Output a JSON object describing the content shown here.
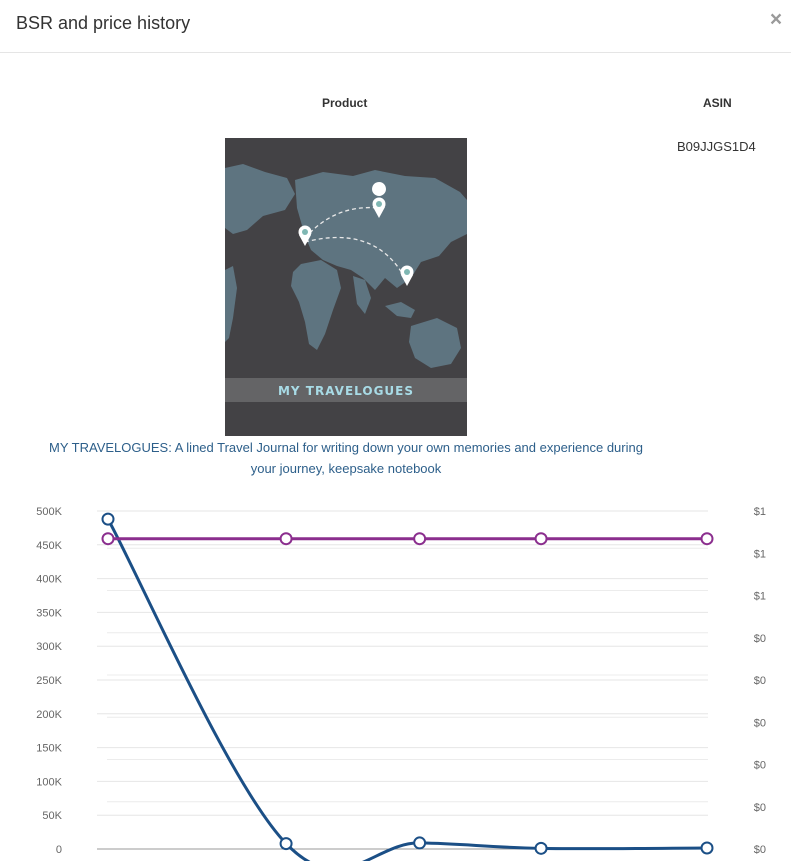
{
  "modal": {
    "title": "BSR and price history",
    "close_label": "×"
  },
  "table": {
    "product_header": "Product",
    "asin_header": "ASIN",
    "asin": "B09JJGS1D4",
    "product_title": "MY TRAVELOGUES: A lined Travel Journal for writing down your own memories and experience during your journey, keepsake notebook",
    "cover_text": "MY TRAVELOGUES"
  },
  "chart_data": {
    "type": "line",
    "y_left_ticks": [
      "0",
      "50K",
      "100K",
      "150K",
      "200K",
      "250K",
      "300K",
      "350K",
      "400K",
      "450K",
      "500K"
    ],
    "y_right_ticks": [
      "$0",
      "$0",
      "$0",
      "$0",
      "$0",
      "$0",
      "$1",
      "$1",
      "$1"
    ],
    "ylim_left": [
      0,
      500000
    ],
    "series": [
      {
        "axis": "left",
        "color": "#1b4f86",
        "points": [
          {
            "x": 0,
            "y": 488000
          },
          {
            "x": 2.2,
            "y": 8000
          },
          {
            "x": 3.85,
            "y": 9000
          },
          {
            "x": 5.35,
            "y": 1000
          },
          {
            "x": 7.4,
            "y": 1500
          }
        ]
      },
      {
        "axis": "right",
        "color": "#8b2e8e",
        "points": [
          {
            "x": 0,
            "y": 459000
          },
          {
            "x": 2.2,
            "y": 459000
          },
          {
            "x": 3.85,
            "y": 459000
          },
          {
            "x": 5.35,
            "y": 459000
          },
          {
            "x": 7.4,
            "y": 459000
          }
        ]
      }
    ],
    "grid": true
  }
}
